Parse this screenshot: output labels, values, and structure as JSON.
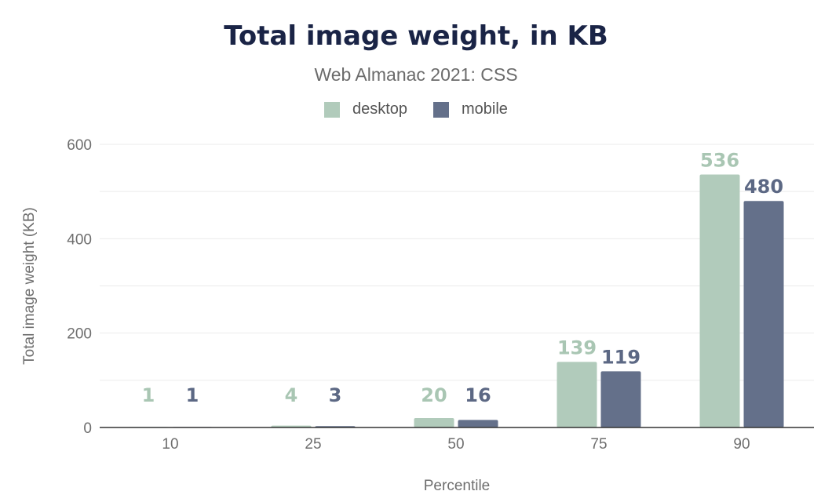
{
  "chart_data": {
    "type": "bar",
    "title": "Total image weight, in KB",
    "subtitle": "Web Almanac 2021: CSS",
    "xlabel": "Percentile",
    "ylabel": "Total image weight (KB)",
    "categories": [
      "10",
      "25",
      "50",
      "75",
      "90"
    ],
    "series": [
      {
        "name": "desktop",
        "color": "#b1cbbb",
        "labelColor": "#a9c6b3",
        "values": [
          1,
          4,
          20,
          139,
          536
        ]
      },
      {
        "name": "mobile",
        "color": "#64708a",
        "labelColor": "#5c6884",
        "values": [
          1,
          3,
          16,
          119,
          480
        ]
      }
    ],
    "yticks": [
      0,
      200,
      400,
      600
    ],
    "ylim": [
      0,
      600
    ],
    "grid": true,
    "legend_position": "top-center"
  }
}
